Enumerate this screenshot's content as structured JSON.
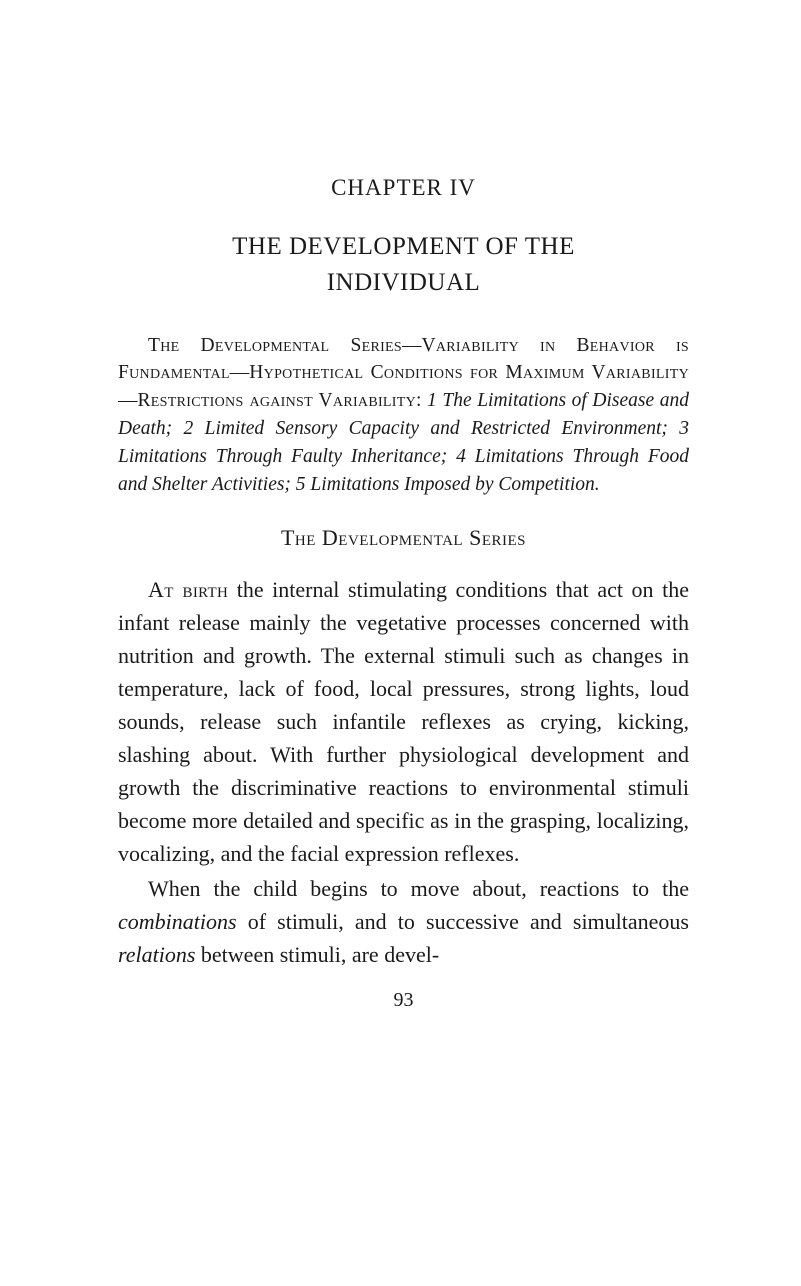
{
  "chapter_number": "CHAPTER IV",
  "chapter_title_line1": "THE DEVELOPMENT OF THE",
  "chapter_title_line2": "INDIVIDUAL",
  "synopsis": {
    "sc1": "The Developmental Series",
    "dash1": "—",
    "sc2": "Variability in Beha­vior is Fundamental",
    "dash2": "—",
    "sc3": "Hypothetical Conditions for Maximum Variability",
    "dash3": "—",
    "sc4": "Restrictions against Varia­bility",
    "colon": ": ",
    "it1": "1 The Limitations of Disease and Death; 2 Lim­ited Sensory Capacity and Restricted Environment; 3 Limitations Through Faulty Inheritance; 4 Limita­tions Through Food and Shelter Activities; 5 Limitations Imposed by Competition."
  },
  "section_heading": "The Developmental Series",
  "para1": {
    "lead": "At birth",
    "rest": " the internal stimulating conditions that act on the infant release mainly the vegetative pro­cesses concerned with nutrition and growth. The external stimuli such as changes in temperature, lack of food, local pressures, strong lights, loud sounds, release such infantile reflexes as crying, kicking, slashing about. With further physiological devel­opment and growth the discriminative reactions to environmental stimuli become more detailed and specific as in the grasping, localizing, vocalizing, and the facial expression reflexes."
  },
  "para2": {
    "t1": "When the child begins to move about, reactions to the ",
    "it1": "combinations",
    "t2": " of stimuli, and to successive and simultaneous ",
    "it2": "relations",
    "t3": " between stimuli, are devel-"
  },
  "page_number": "93"
}
